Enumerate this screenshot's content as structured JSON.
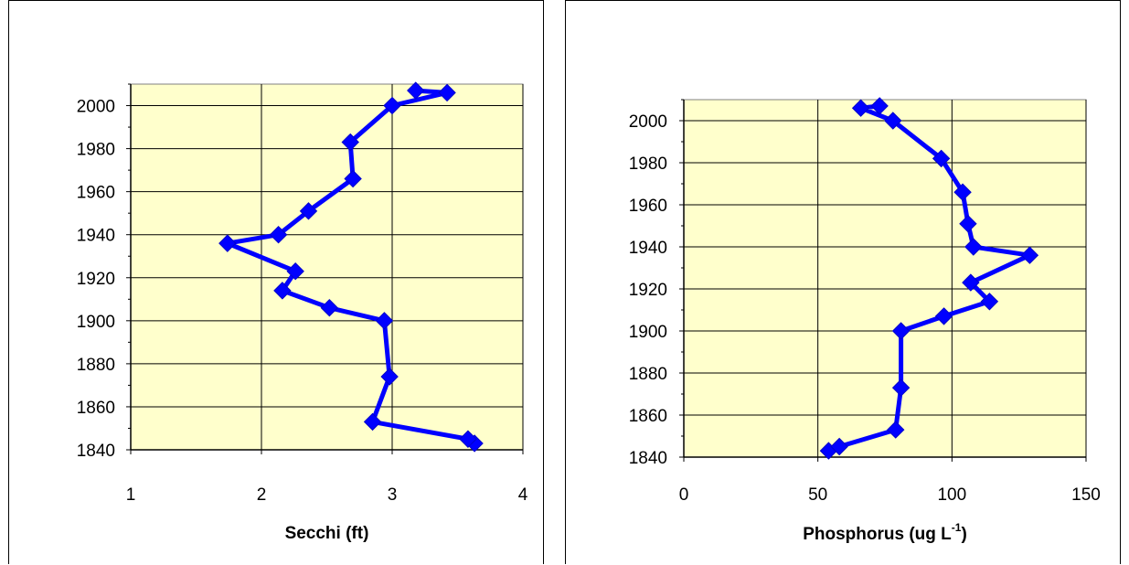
{
  "chart_data": [
    {
      "type": "line",
      "xlabel": "Secchi (ft)",
      "ylabel": "",
      "xlim": [
        1,
        4
      ],
      "ylim": [
        1840,
        2010
      ],
      "x_ticks": [
        "1",
        "2",
        "3",
        "4"
      ],
      "y_ticks": [
        "1840",
        "1860",
        "1880",
        "1900",
        "1920",
        "1940",
        "1960",
        "1980",
        "2000"
      ],
      "plot_background": "#FFFFCC",
      "line_color": "#0000FF",
      "marker": "diamond",
      "grid": true,
      "series": [
        {
          "points": [
            [
              3.63,
              1843
            ],
            [
              3.58,
              1845
            ],
            [
              2.85,
              1853
            ],
            [
              2.98,
              1874
            ],
            [
              2.94,
              1900
            ],
            [
              2.52,
              1906
            ],
            [
              2.16,
              1914
            ],
            [
              2.26,
              1923
            ],
            [
              1.74,
              1936
            ],
            [
              2.13,
              1940
            ],
            [
              2.36,
              1951
            ],
            [
              2.7,
              1966
            ],
            [
              2.68,
              1983
            ],
            [
              3.0,
              2000
            ],
            [
              3.42,
              2006
            ],
            [
              3.18,
              2007
            ]
          ]
        }
      ]
    },
    {
      "type": "line",
      "xlabel": "Phosphorus (ug L",
      "xlabel_sup": "-1",
      "xlabel_close": ")",
      "ylabel": "",
      "xlim": [
        0,
        150
      ],
      "ylim": [
        1840,
        2010
      ],
      "x_ticks": [
        "0",
        "50",
        "100",
        "150"
      ],
      "y_ticks": [
        "1840",
        "1860",
        "1880",
        "1900",
        "1920",
        "1940",
        "1960",
        "1980",
        "2000"
      ],
      "plot_background": "#FFFFCC",
      "line_color": "#0000FF",
      "marker": "diamond",
      "grid": true,
      "series": [
        {
          "points": [
            [
              54,
              1843
            ],
            [
              58,
              1845
            ],
            [
              79,
              1853
            ],
            [
              81,
              1873
            ],
            [
              81,
              1900
            ],
            [
              97,
              1907
            ],
            [
              114,
              1914
            ],
            [
              107,
              1923
            ],
            [
              129,
              1936
            ],
            [
              108,
              1940
            ],
            [
              106,
              1951
            ],
            [
              104,
              1966
            ],
            [
              96,
              1982
            ],
            [
              78,
              2000
            ],
            [
              66,
              2006
            ],
            [
              73,
              2007
            ]
          ]
        }
      ]
    }
  ]
}
